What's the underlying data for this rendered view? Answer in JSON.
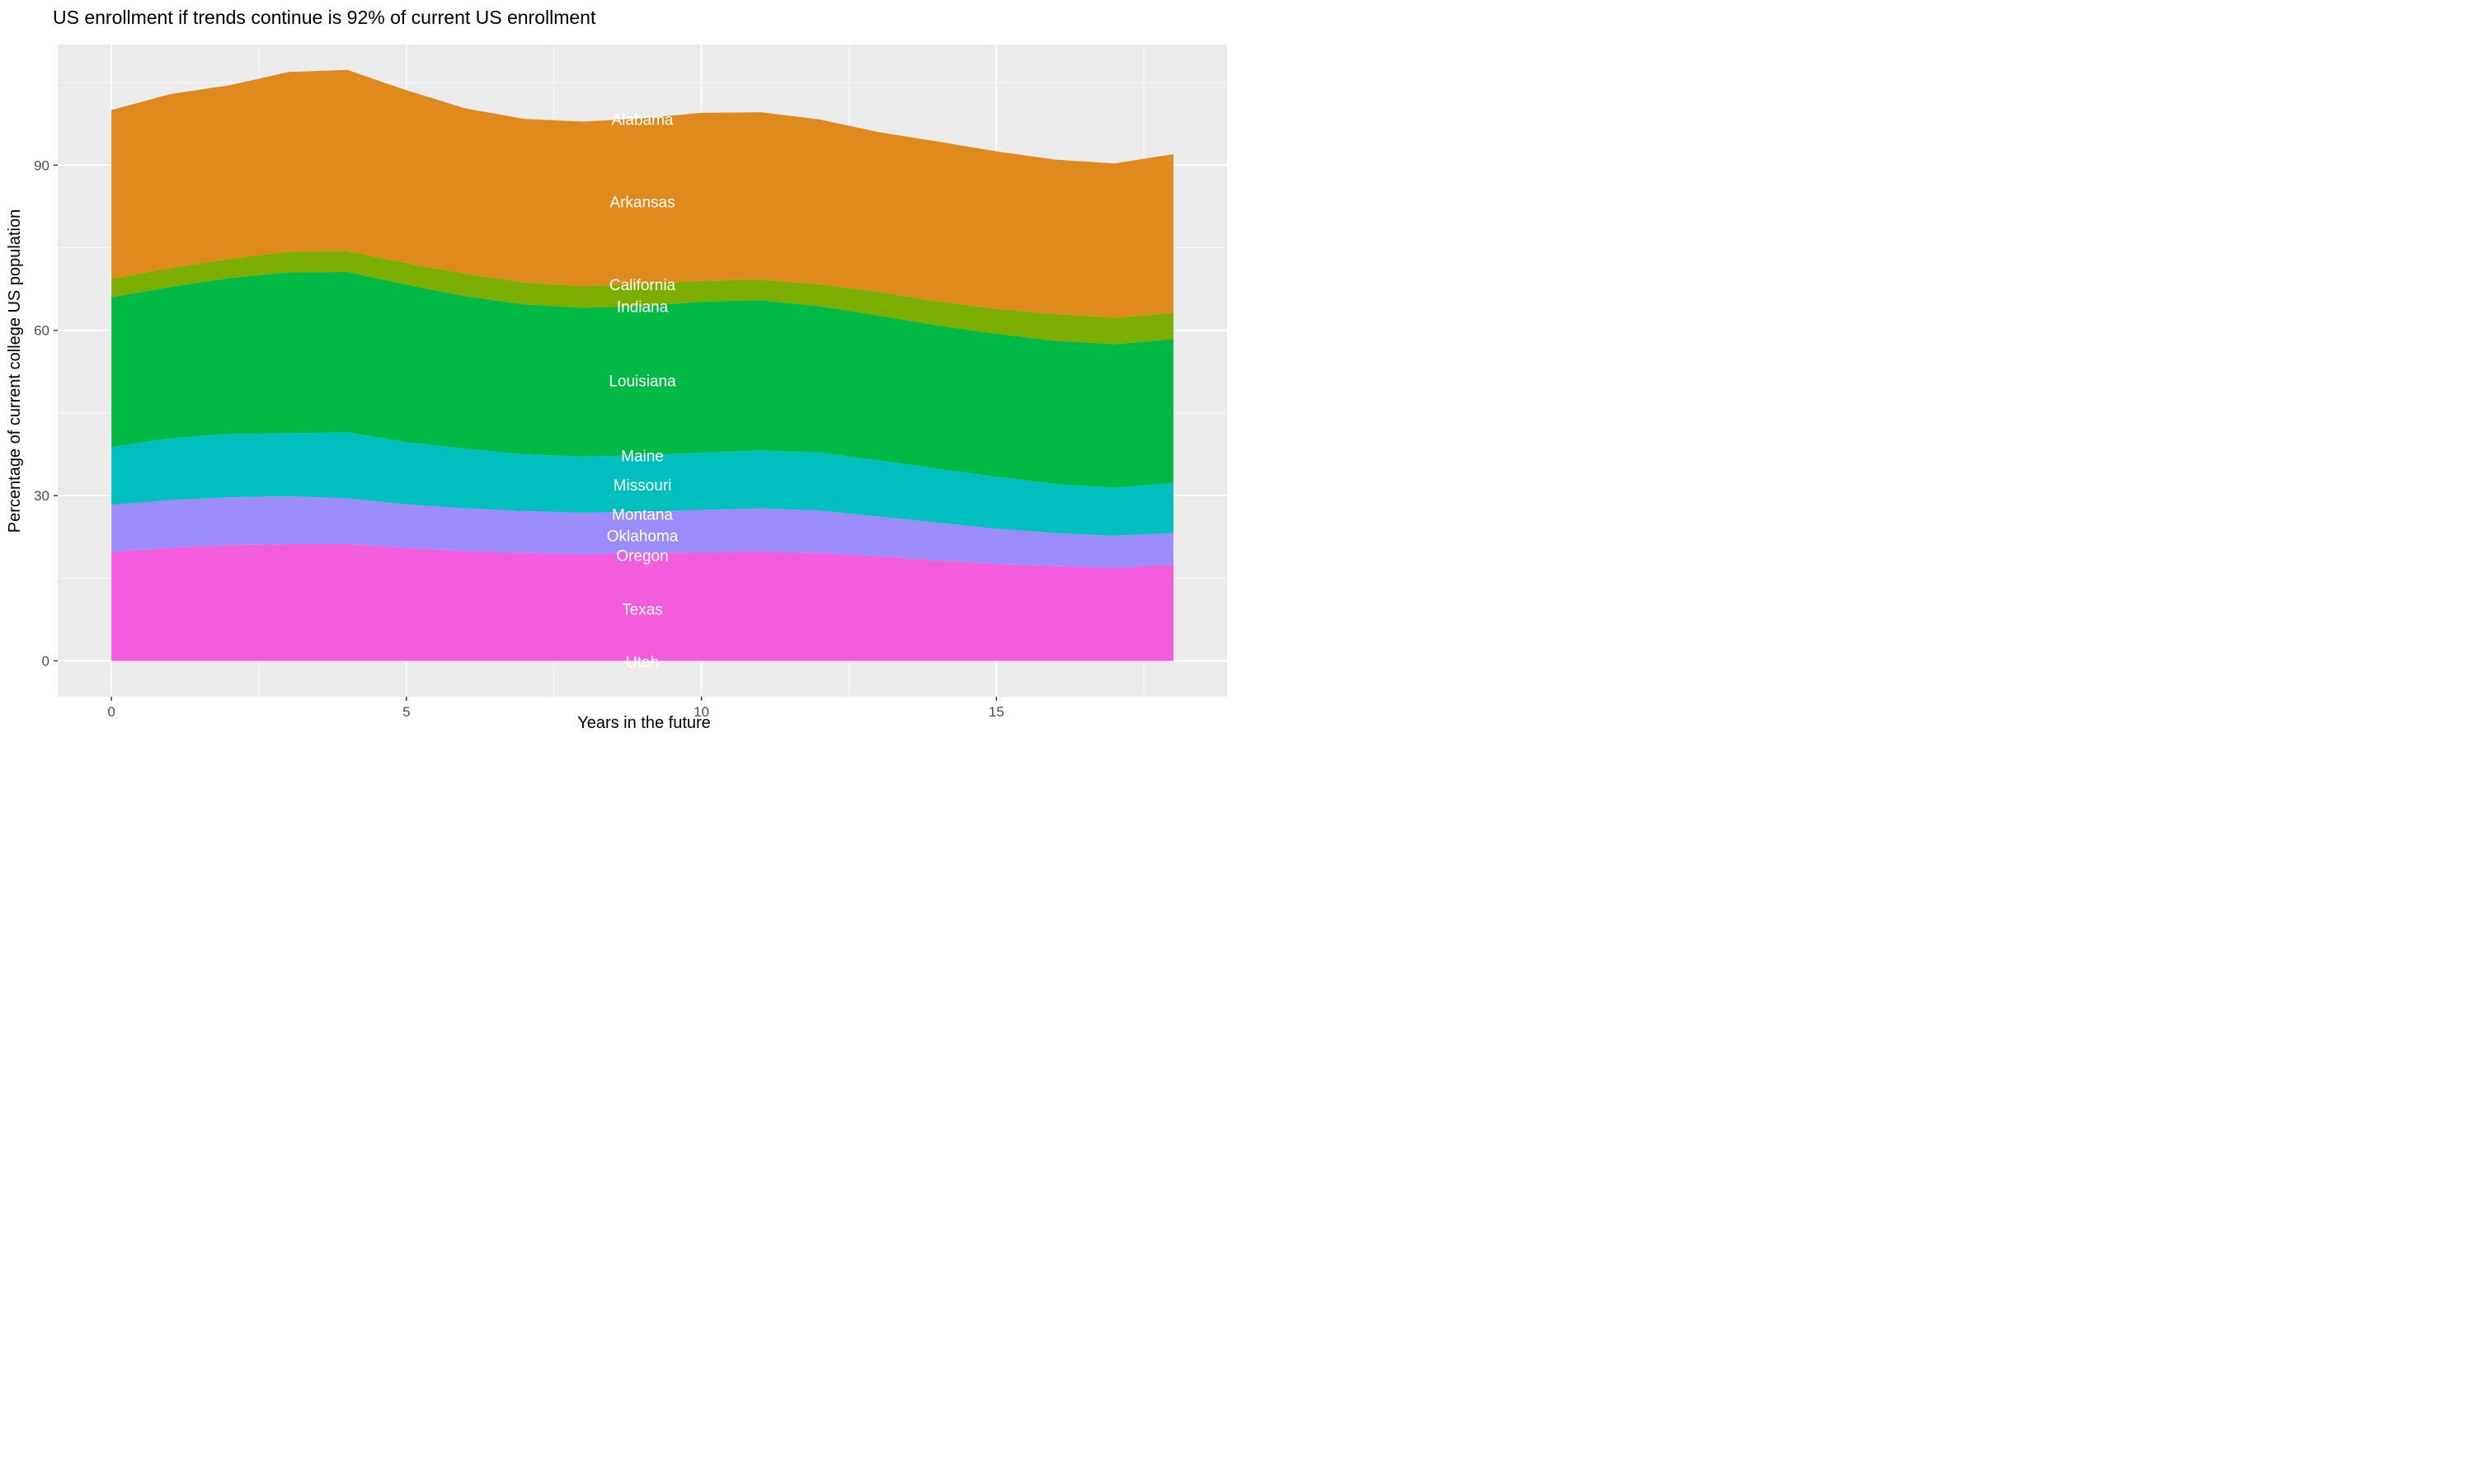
{
  "title": "US enrollment if trends continue is 92% of current US enrollment",
  "chart_data": {
    "type": "area",
    "stacked": true,
    "title": "US enrollment if trends continue is 92% of current US enrollment",
    "xlabel": "Years in the future",
    "ylabel": "Percentage of current college US population",
    "x": [
      0,
      1,
      2,
      3,
      4,
      5,
      6,
      7,
      8,
      9,
      10,
      11,
      12,
      13,
      14,
      15,
      16,
      17,
      18
    ],
    "x_ticks": [
      0,
      5,
      10,
      15
    ],
    "x_minor_ticks": [
      2.5,
      7.5,
      12.5,
      17.5
    ],
    "y_ticks": [
      0,
      30,
      60,
      90
    ],
    "y_minor_ticks": [
      15,
      45,
      75,
      105
    ],
    "xlim": [
      -0.91,
      18.91
    ],
    "ylim": [
      -6.5,
      111.9
    ],
    "panel_background": "#EBEBEB",
    "grid_color": "#FFFFFF",
    "total_at_start_pct": 100,
    "total_at_end_pct": 92,
    "label_x": 9,
    "stack_bottom_to_top": [
      "Utah",
      "Texas",
      "Oregon",
      "Oklahoma",
      "Montana",
      "Missouri",
      "Maine",
      "Louisiana",
      "Indiana",
      "California",
      "Arkansas",
      "Alabama"
    ],
    "series": [
      {
        "name": "Alabama",
        "color": "#F8766D",
        "label_y": 98.3,
        "values": [
          0,
          0,
          0,
          0,
          0,
          0,
          0,
          0,
          0,
          0,
          0,
          0,
          0,
          0,
          0,
          0,
          0,
          0,
          0
        ]
      },
      {
        "name": "Arkansas",
        "color": "#E08A1D",
        "label_y": 83.3,
        "values": [
          30.6,
          31.6,
          31.5,
          32.6,
          32.9,
          31.4,
          30.0,
          29.7,
          29.9,
          30.1,
          30.5,
          30.4,
          29.9,
          29.0,
          29.0,
          28.6,
          28.0,
          28.0,
          28.8
        ]
      },
      {
        "name": "California",
        "color": "#B79F00",
        "label_y": 68.3,
        "values": [
          0,
          0,
          0,
          0,
          0,
          0,
          0,
          0,
          0,
          0,
          0,
          0,
          0,
          0,
          0,
          0,
          0,
          0,
          0
        ]
      },
      {
        "name": "Indiana",
        "color": "#7CAE00",
        "label_y": 64.3,
        "values": [
          3.4,
          3.4,
          3.5,
          3.8,
          3.8,
          3.9,
          4.1,
          4.0,
          3.9,
          4.0,
          3.8,
          3.7,
          4.0,
          4.3,
          4.4,
          4.5,
          4.9,
          4.8,
          4.8
        ]
      },
      {
        "name": "Louisiana",
        "color": "#00BA45",
        "label_y": 50.8,
        "values": [
          27.2,
          27.5,
          28.3,
          29.2,
          29.1,
          28.6,
          27.7,
          27.2,
          27.0,
          27.1,
          27.4,
          27.3,
          26.6,
          26.3,
          26.0,
          26.0,
          26.0,
          26.1,
          26.1
        ]
      },
      {
        "name": "Maine",
        "color": "#00C08B",
        "label_y": 37.2,
        "values": [
          0,
          0,
          0,
          0,
          0,
          0,
          0,
          0,
          0,
          0,
          0,
          0,
          0,
          0,
          0,
          0,
          0,
          0,
          0
        ]
      },
      {
        "name": "Missouri",
        "color": "#00BFBE",
        "label_y": 31.9,
        "values": [
          10.5,
          11.2,
          11.5,
          11.4,
          12.0,
          11.3,
          10.8,
          10.3,
          10.2,
          10.2,
          10.4,
          10.5,
          10.5,
          10.2,
          9.8,
          9.4,
          8.9,
          8.7,
          9.1
        ]
      },
      {
        "name": "Montana",
        "color": "#00B4F0",
        "label_y": 26.6,
        "values": [
          0,
          0,
          0,
          0,
          0,
          0,
          0,
          0,
          0,
          0,
          0,
          0,
          0,
          0,
          0,
          0,
          0,
          0,
          0
        ]
      },
      {
        "name": "Oklahoma",
        "color": "#9B8CFA",
        "label_y": 22.7,
        "values": [
          8.5,
          8.7,
          8.7,
          8.7,
          8.3,
          7.9,
          7.8,
          7.6,
          7.5,
          7.5,
          7.7,
          7.9,
          7.7,
          7.2,
          6.9,
          6.4,
          6.0,
          5.8,
          5.7
        ]
      },
      {
        "name": "Oregon",
        "color": "#C77CFF",
        "label_y": 19.1,
        "values": [
          0,
          0,
          0,
          0,
          0,
          0,
          0,
          0,
          0,
          0,
          0,
          0,
          0,
          0,
          0,
          0,
          0,
          0,
          0
        ]
      },
      {
        "name": "Texas",
        "color": "#F35CDC",
        "label_y": 9.4,
        "values": [
          19.8,
          20.5,
          21.0,
          21.2,
          21.2,
          20.5,
          19.9,
          19.6,
          19.4,
          19.6,
          19.7,
          19.8,
          19.6,
          19.0,
          18.2,
          17.6,
          17.2,
          16.9,
          17.5
        ]
      },
      {
        "name": "Utah",
        "color": "#FF64B0",
        "label_y": -0.2,
        "values": [
          0,
          0,
          0,
          0,
          0,
          0,
          0,
          0,
          0,
          0,
          0,
          0,
          0,
          0,
          0,
          0,
          0,
          0,
          0
        ]
      }
    ]
  }
}
